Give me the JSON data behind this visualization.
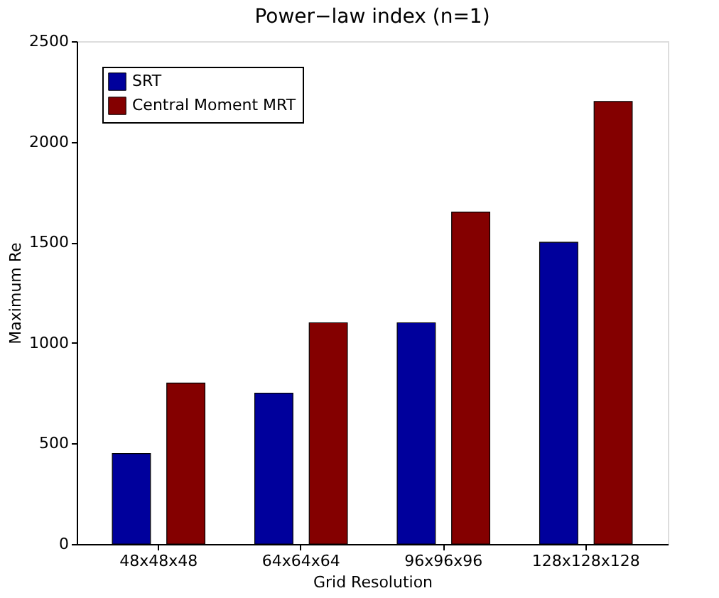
{
  "chart_data": {
    "type": "bar",
    "title": "Power−law index (n=1)",
    "xlabel": "Grid Resolution",
    "ylabel": "Maximum Re",
    "categories": [
      "48x48x48",
      "64x64x64",
      "96x96x96",
      "128x128x128"
    ],
    "series": [
      {
        "name": "SRT",
        "color": "#00009c",
        "values": [
          450,
          750,
          1100,
          1500
        ]
      },
      {
        "name": "Central Moment MRT",
        "color": "#840000",
        "values": [
          800,
          1100,
          1650,
          2200
        ]
      }
    ],
    "ylim": [
      0,
      2500
    ],
    "yticks": [
      0,
      500,
      1000,
      1500,
      2000,
      2500
    ],
    "grid": false,
    "legend": "top left"
  }
}
